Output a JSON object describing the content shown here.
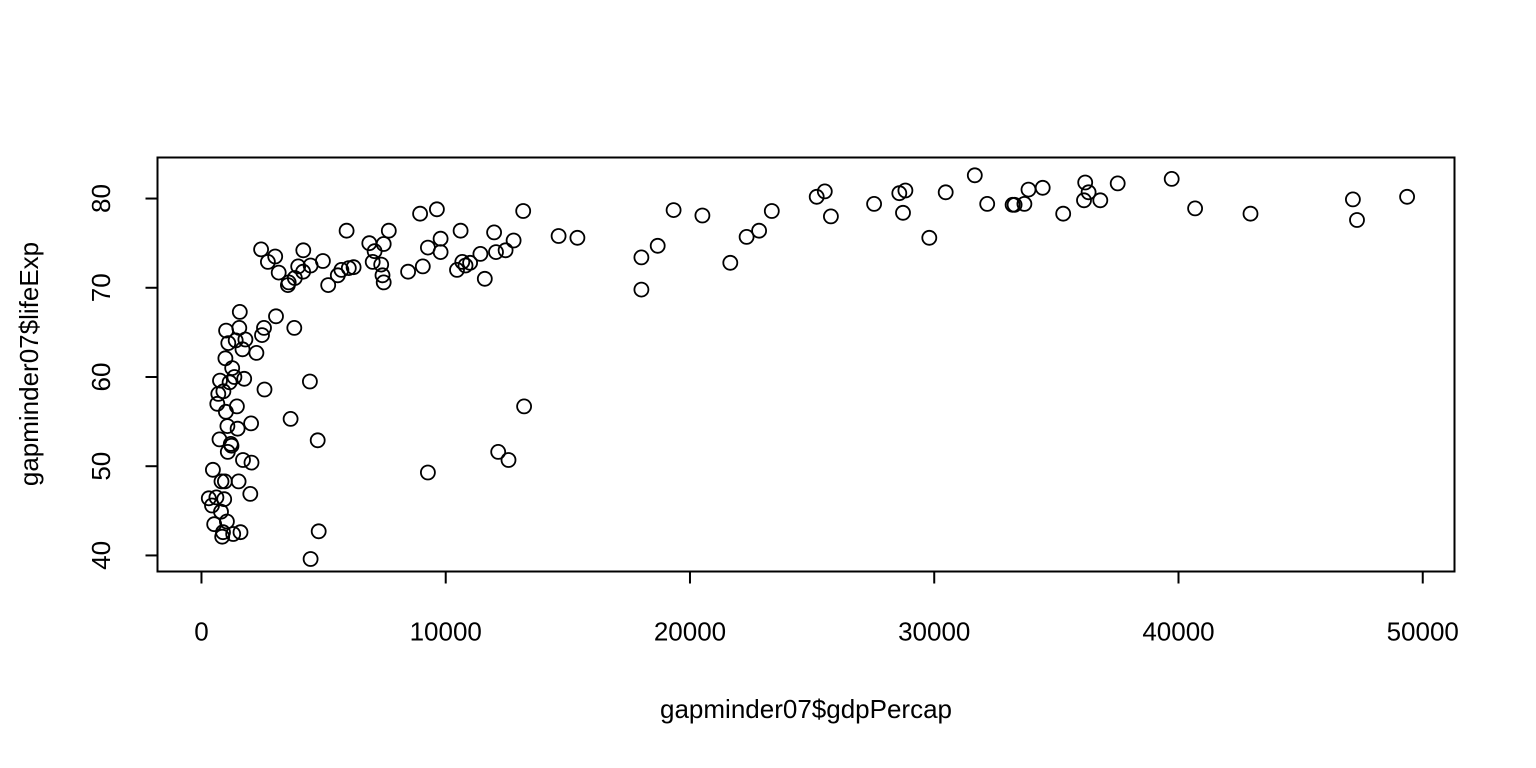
{
  "chart_data": {
    "type": "scatter",
    "title": "",
    "xlabel": "gapminder07$gdpPercap",
    "ylabel": "gapminder07$lifeExp",
    "xlim": [
      -1800,
      51300
    ],
    "ylim": [
      38.2,
      84.6
    ],
    "xticks": [
      0,
      10000,
      20000,
      30000,
      40000,
      50000
    ],
    "yticks": [
      40,
      50,
      60,
      70,
      80
    ],
    "grid": false,
    "legend": "none",
    "marker": "open-circle",
    "colors": {
      "stroke": "#000000",
      "background": "#ffffff"
    },
    "series": [
      {
        "points": [
          [
            300,
            46.4
          ],
          [
            430,
            45.6
          ],
          [
            470,
            49.6
          ],
          [
            520,
            43.5
          ],
          [
            610,
            46.5
          ],
          [
            650,
            57
          ],
          [
            690,
            58.1
          ],
          [
            740,
            53
          ],
          [
            760,
            59.6
          ],
          [
            800,
            44.9
          ],
          [
            820,
            48.3
          ],
          [
            850,
            42.1
          ],
          [
            880,
            42.6
          ],
          [
            900,
            58.4
          ],
          [
            930,
            46.3
          ],
          [
            960,
            48.3
          ],
          [
            980,
            62.1
          ],
          [
            1000,
            56.1
          ],
          [
            1010,
            65.2
          ],
          [
            1040,
            43.8
          ],
          [
            1060,
            54.5
          ],
          [
            1080,
            51.6
          ],
          [
            1100,
            63.8
          ],
          [
            1150,
            59.4
          ],
          [
            1200,
            52.5
          ],
          [
            1230,
            52.3
          ],
          [
            1260,
            61
          ],
          [
            1300,
            42.4
          ],
          [
            1350,
            60
          ],
          [
            1400,
            64.1
          ],
          [
            1450,
            56.7
          ],
          [
            1480,
            54.2
          ],
          [
            1520,
            48.3
          ],
          [
            1550,
            65.5
          ],
          [
            1570,
            67.3
          ],
          [
            1600,
            42.6
          ],
          [
            1680,
            63.1
          ],
          [
            1700,
            50.7
          ],
          [
            1750,
            59.8
          ],
          [
            1800,
            64.2
          ],
          [
            2000,
            46.9
          ],
          [
            2030,
            54.8
          ],
          [
            2050,
            50.4
          ],
          [
            2250,
            62.7
          ],
          [
            2440,
            74.3
          ],
          [
            2480,
            64.7
          ],
          [
            2560,
            65.5
          ],
          [
            2580,
            58.6
          ],
          [
            2720,
            72.9
          ],
          [
            3020,
            73.5
          ],
          [
            3050,
            66.8
          ],
          [
            3160,
            71.7
          ],
          [
            3540,
            70.3
          ],
          [
            3570,
            70.6
          ],
          [
            3650,
            55.3
          ],
          [
            3820,
            71.1
          ],
          [
            3800,
            65.5
          ],
          [
            3960,
            72.4
          ],
          [
            4170,
            74.2
          ],
          [
            4160,
            71.8
          ],
          [
            4440,
            59.5
          ],
          [
            4470,
            72.5
          ],
          [
            4470,
            39.6
          ],
          [
            4760,
            52.9
          ],
          [
            4800,
            42.7
          ],
          [
            4970,
            73
          ],
          [
            5190,
            70.3
          ],
          [
            5580,
            71.4
          ],
          [
            5730,
            72
          ],
          [
            5940,
            76.4
          ],
          [
            6030,
            72.2
          ],
          [
            6230,
            72.3
          ],
          [
            6870,
            75
          ],
          [
            7010,
            72.9
          ],
          [
            7090,
            74.1
          ],
          [
            7360,
            72.6
          ],
          [
            7410,
            71.4
          ],
          [
            7460,
            70.6
          ],
          [
            7460,
            74.9
          ],
          [
            7670,
            76.4
          ],
          [
            8460,
            71.8
          ],
          [
            8950,
            78.3
          ],
          [
            9060,
            72.4
          ],
          [
            9270,
            74.5
          ],
          [
            9270,
            49.3
          ],
          [
            9640,
            78.8
          ],
          [
            9790,
            75.5
          ],
          [
            9790,
            74
          ],
          [
            10460,
            72
          ],
          [
            10610,
            76.4
          ],
          [
            10680,
            72.9
          ],
          [
            10810,
            72.5
          ],
          [
            11000,
            72.8
          ],
          [
            11420,
            73.8
          ],
          [
            11600,
            71
          ],
          [
            11980,
            76.2
          ],
          [
            12060,
            74
          ],
          [
            12150,
            51.6
          ],
          [
            12450,
            74.2
          ],
          [
            12570,
            50.7
          ],
          [
            12780,
            75.3
          ],
          [
            13170,
            78.6
          ],
          [
            13210,
            56.7
          ],
          [
            14620,
            75.8
          ],
          [
            15390,
            75.6
          ],
          [
            18010,
            73.4
          ],
          [
            18010,
            69.8
          ],
          [
            18680,
            74.7
          ],
          [
            19330,
            78.7
          ],
          [
            20510,
            78.1
          ],
          [
            21650,
            72.8
          ],
          [
            22320,
            75.7
          ],
          [
            22830,
            76.4
          ],
          [
            23350,
            78.6
          ],
          [
            25190,
            80.2
          ],
          [
            25520,
            80.8
          ],
          [
            25770,
            78
          ],
          [
            27540,
            79.4
          ],
          [
            28570,
            80.6
          ],
          [
            28720,
            78.4
          ],
          [
            28820,
            80.9
          ],
          [
            29800,
            75.6
          ],
          [
            30470,
            80.7
          ],
          [
            31660,
            82.6
          ],
          [
            32170,
            79.4
          ],
          [
            33210,
            79.3
          ],
          [
            33290,
            79.3
          ],
          [
            33690,
            79.4
          ],
          [
            33860,
            81
          ],
          [
            34440,
            81.2
          ],
          [
            35280,
            78.3
          ],
          [
            36130,
            79.8
          ],
          [
            36180,
            81.8
          ],
          [
            36320,
            80.7
          ],
          [
            36800,
            79.8
          ],
          [
            37510,
            81.7
          ],
          [
            39720,
            82.2
          ],
          [
            40680,
            78.9
          ],
          [
            42950,
            78.3
          ],
          [
            47140,
            79.9
          ],
          [
            47310,
            77.6
          ],
          [
            49360,
            80.2
          ]
        ]
      }
    ]
  }
}
